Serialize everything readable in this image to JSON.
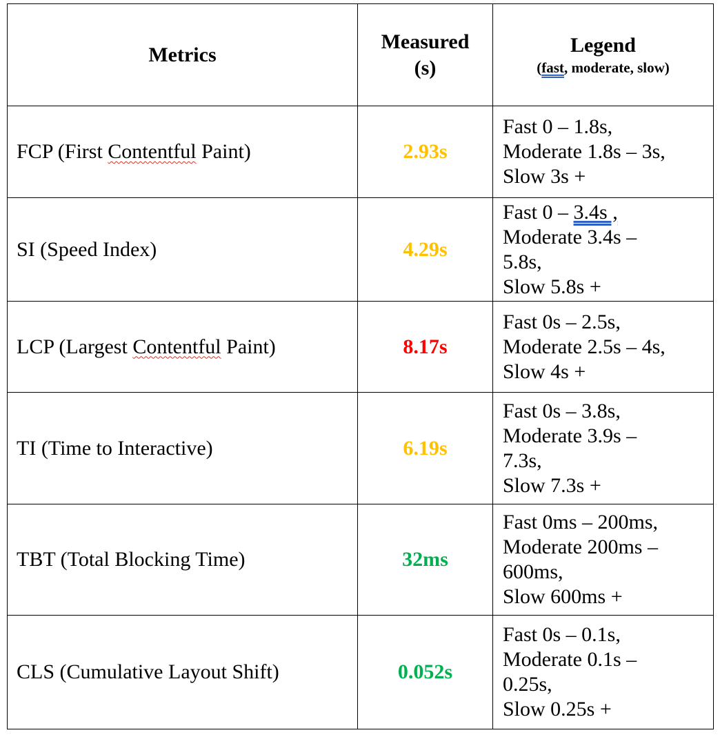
{
  "header": {
    "metrics": "Metrics",
    "measured_line1": "Measured",
    "measured_line2": "(s)",
    "legend_title": "Legend",
    "legend_sub_open": "(",
    "legend_sub_fast": "fast",
    "legend_sub_rest": ", moderate, slow)"
  },
  "colors": {
    "moderate": "#ffc000",
    "slow": "#ff0000",
    "fast": "#00b050",
    "spellcheck_underline": "#d93025",
    "grammar_underline": "#2f5fc4"
  },
  "rows": [
    {
      "metric_pre": "FCP (First ",
      "metric_mark": "Contentful",
      "metric_post": " Paint)",
      "value": "2.93s",
      "rating": "moderate",
      "legend": [
        "Fast 0 – 1.8s,",
        "Moderate 1.8s – 3s,",
        "Slow 3s +"
      ]
    },
    {
      "metric_pre": "SI (Speed Index)",
      "metric_mark": "",
      "metric_post": "",
      "value": "4.29s",
      "rating": "moderate",
      "legend": [
        "Fast 0 – ",
        "3.4s ,",
        "Moderate 3.4s –",
        "5.8s,",
        "Slow 5.8s +"
      ]
    },
    {
      "metric_pre": "LCP (Largest ",
      "metric_mark": "Contentful",
      "metric_post": " Paint)",
      "value": "8.17s",
      "rating": "slow",
      "legend": [
        "Fast 0s – 2.5s,",
        "Moderate 2.5s – 4s,",
        "Slow 4s +"
      ]
    },
    {
      "metric_pre": "TI (Time to Interactive)",
      "metric_mark": "",
      "metric_post": "",
      "value": "6.19s",
      "rating": "moderate",
      "legend": [
        "Fast 0s – 3.8s,",
        "Moderate 3.9s –",
        "7.3s,",
        "Slow 7.3s +"
      ]
    },
    {
      "metric_pre": "TBT (Total Blocking Time)",
      "metric_mark": "",
      "metric_post": "",
      "value": "32ms",
      "rating": "fast",
      "legend": [
        "Fast 0ms – 200ms,",
        "Moderate 200ms –",
        "600ms,",
        "Slow 600ms +"
      ]
    },
    {
      "metric_pre": "CLS (Cumulative Layout Shift)",
      "metric_mark": "",
      "metric_post": "",
      "value": "0.052s",
      "rating": "fast",
      "legend": [
        "Fast 0s – 0.1s,",
        "Moderate 0.1s –",
        "0.25s,",
        "Slow 0.25s +"
      ]
    }
  ]
}
